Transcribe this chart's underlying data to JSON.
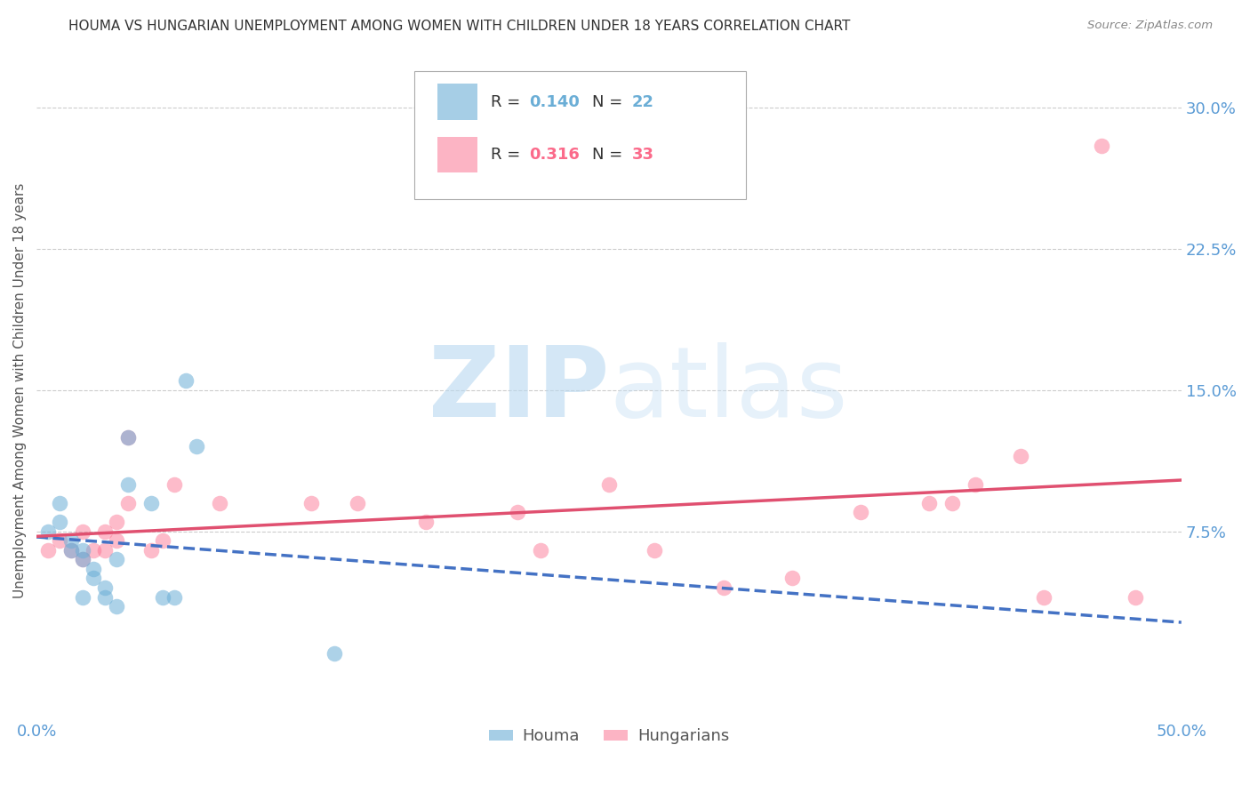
{
  "title": "HOUMA VS HUNGARIAN UNEMPLOYMENT AMONG WOMEN WITH CHILDREN UNDER 18 YEARS CORRELATION CHART",
  "source": "Source: ZipAtlas.com",
  "ylabel": "Unemployment Among Women with Children Under 18 years",
  "xlim": [
    0.0,
    0.5
  ],
  "ylim": [
    -0.025,
    0.325
  ],
  "xticks": [
    0.0,
    0.5
  ],
  "xticklabels": [
    "0.0%",
    "50.0%"
  ],
  "yticks": [
    0.075,
    0.15,
    0.225,
    0.3
  ],
  "yticklabels": [
    "7.5%",
    "15.0%",
    "22.5%",
    "30.0%"
  ],
  "houma_color": "#6baed6",
  "hungarian_color": "#fb6a8a",
  "houma_line_color": "#4472c4",
  "hungarian_line_color": "#e05070",
  "houma_x": [
    0.005,
    0.01,
    0.01,
    0.015,
    0.015,
    0.02,
    0.02,
    0.02,
    0.025,
    0.025,
    0.03,
    0.03,
    0.035,
    0.035,
    0.04,
    0.04,
    0.05,
    0.055,
    0.06,
    0.065,
    0.07,
    0.13
  ],
  "houma_y": [
    0.075,
    0.08,
    0.09,
    0.065,
    0.07,
    0.06,
    0.065,
    0.04,
    0.05,
    0.055,
    0.04,
    0.045,
    0.035,
    0.06,
    0.1,
    0.125,
    0.09,
    0.04,
    0.04,
    0.155,
    0.12,
    0.01
  ],
  "hungarian_x": [
    0.005,
    0.01,
    0.015,
    0.02,
    0.02,
    0.025,
    0.03,
    0.03,
    0.035,
    0.035,
    0.04,
    0.04,
    0.05,
    0.055,
    0.06,
    0.08,
    0.12,
    0.14,
    0.17,
    0.21,
    0.22,
    0.25,
    0.27,
    0.3,
    0.33,
    0.36,
    0.39,
    0.4,
    0.41,
    0.43,
    0.44,
    0.465,
    0.48
  ],
  "hungarian_y": [
    0.065,
    0.07,
    0.065,
    0.075,
    0.06,
    0.065,
    0.075,
    0.065,
    0.08,
    0.07,
    0.09,
    0.125,
    0.065,
    0.07,
    0.1,
    0.09,
    0.09,
    0.09,
    0.08,
    0.085,
    0.065,
    0.1,
    0.065,
    0.045,
    0.05,
    0.085,
    0.09,
    0.09,
    0.1,
    0.115,
    0.04,
    0.28,
    0.04
  ],
  "houma_R": "0.140",
  "houma_N": "22",
  "hungarian_R": "0.316",
  "hungarian_N": "33",
  "watermark_zip": "ZIP",
  "watermark_atlas": "atlas",
  "title_fontsize": 11,
  "axis_tick_color": "#5b9bd5",
  "grid_color": "#cccccc",
  "background_color": "#ffffff"
}
